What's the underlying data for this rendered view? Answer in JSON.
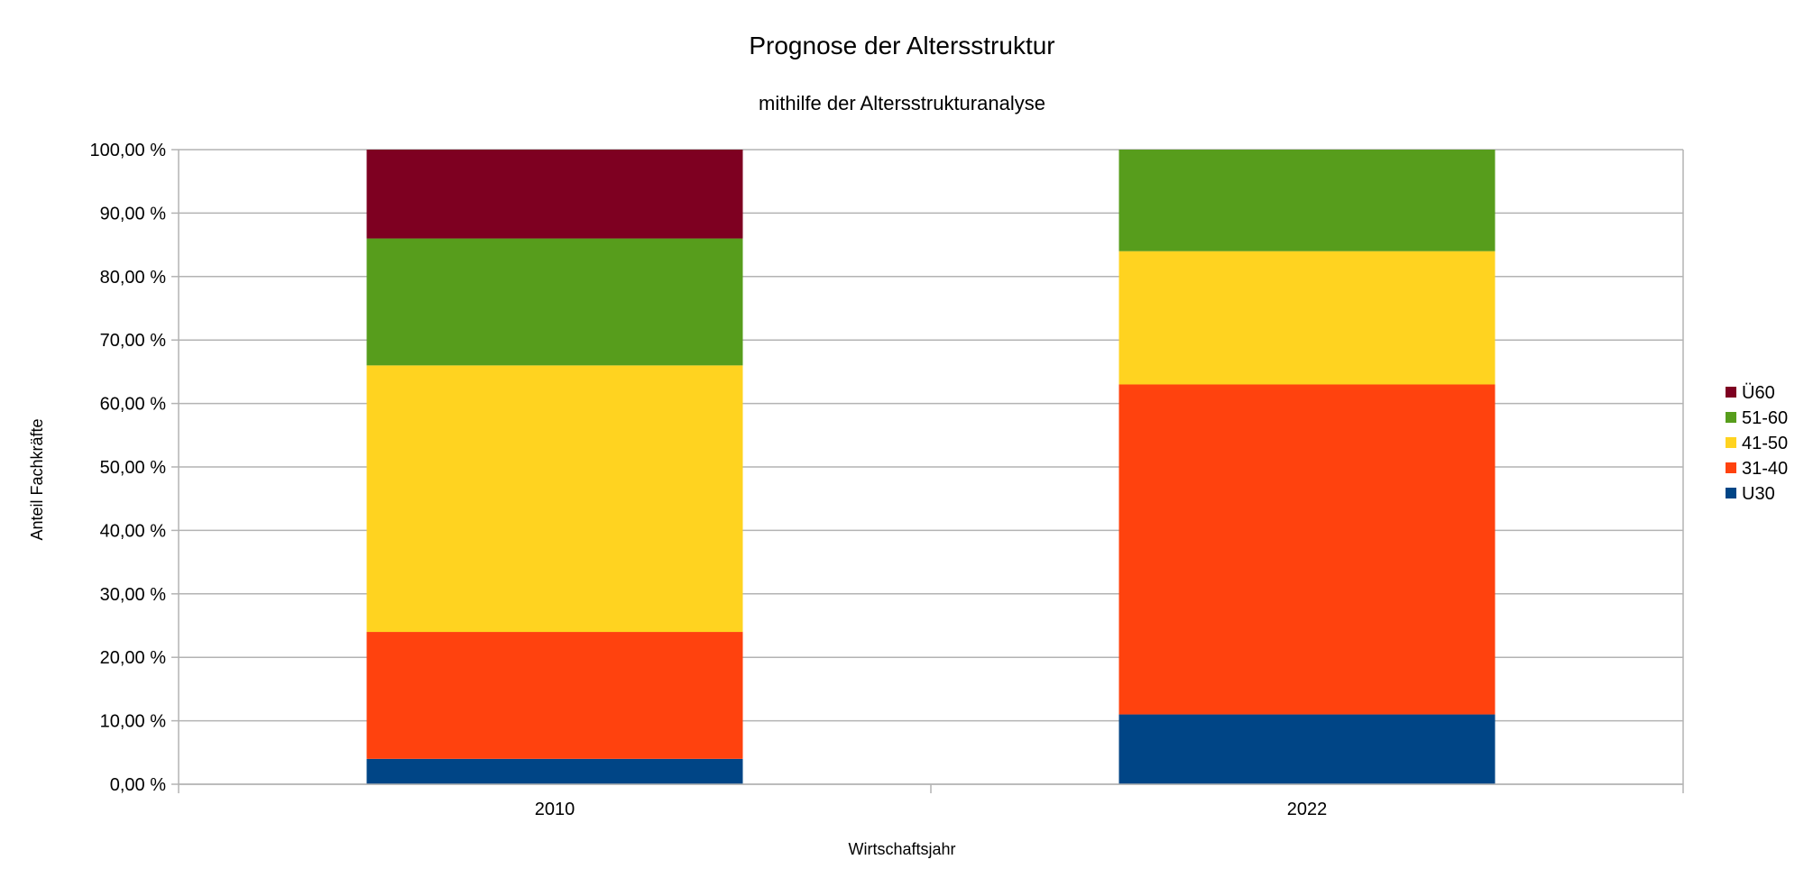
{
  "chart_data": {
    "type": "bar",
    "stacked": true,
    "title": "Prognose der Altersstruktur",
    "subtitle": "mithilfe der Altersstrukturanalyse",
    "xlabel": "Wirtschaftsjahr",
    "ylabel": "Anteil Fachkräfte",
    "categories": [
      "2010",
      "2022"
    ],
    "ylim": [
      0,
      100
    ],
    "yticks": [
      0,
      10,
      20,
      30,
      40,
      50,
      60,
      70,
      80,
      90,
      100
    ],
    "ytick_labels": [
      "0,00 %",
      "10,00 %",
      "20,00 %",
      "30,00 %",
      "40,00 %",
      "50,00 %",
      "60,00 %",
      "70,00 %",
      "80,00 %",
      "90,00 %",
      "100,00 %"
    ],
    "grid": true,
    "legend_position": "right",
    "series": [
      {
        "name": "U30",
        "color": "#004586",
        "values": [
          4,
          11
        ]
      },
      {
        "name": "31-40",
        "color": "#ff420e",
        "values": [
          20,
          52
        ]
      },
      {
        "name": "41-50",
        "color": "#ffd320",
        "values": [
          42,
          21
        ]
      },
      {
        "name": "51-60",
        "color": "#579d1c",
        "values": [
          20,
          16
        ]
      },
      {
        "name": "Ü60",
        "color": "#7e0021",
        "values": [
          14,
          0
        ]
      }
    ]
  }
}
